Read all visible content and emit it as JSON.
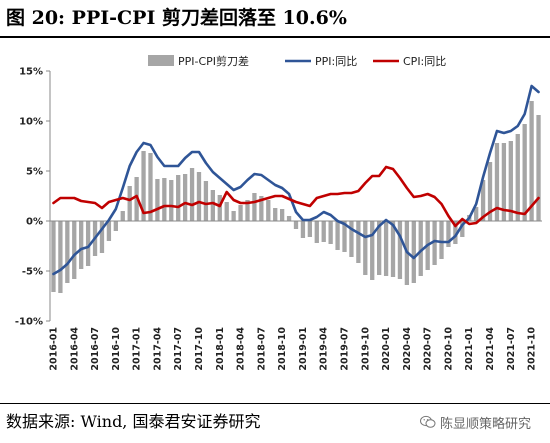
{
  "header": {
    "title": "图 20:  PPI-CPI 剪刀差回落至 10.6%"
  },
  "footer": {
    "source": "数据来源:  Wind, 国泰君安证券研究",
    "watermark": "陈显顺策略研究"
  },
  "colors": {
    "bars": "#a6a6a6",
    "ppi": "#2f5597",
    "cpi": "#c00000",
    "axis": "#888888"
  },
  "chart_data": {
    "type": "bar",
    "title": "",
    "xlabel": "",
    "ylabel": "",
    "ylim": [
      -10,
      15
    ],
    "yticks": [
      "15%",
      "10%",
      "5%",
      "0%",
      "-5%",
      "-10%"
    ],
    "ytick_values": [
      15,
      10,
      5,
      0,
      -5,
      -10
    ],
    "grid": false,
    "legend": {
      "position": "top",
      "entries": [
        "PPI-CPI剪刀差",
        "PPI:同比",
        "CPI:同比"
      ]
    },
    "x_tick_labels": [
      "2016-01",
      "2016-04",
      "2016-07",
      "2016-10",
      "2017-01",
      "2017-04",
      "2017-07",
      "2017-10",
      "2018-01",
      "2018-04",
      "2018-07",
      "2018-10",
      "2019-01",
      "2019-04",
      "2019-07",
      "2019-10",
      "2020-01",
      "2020-04",
      "2020-07",
      "2020-10",
      "2021-01",
      "2021-04",
      "2021-07",
      "2021-10"
    ],
    "categories": [
      "2016-01",
      "2016-02",
      "2016-03",
      "2016-04",
      "2016-05",
      "2016-06",
      "2016-07",
      "2016-08",
      "2016-09",
      "2016-10",
      "2016-11",
      "2016-12",
      "2017-01",
      "2017-02",
      "2017-03",
      "2017-04",
      "2017-05",
      "2017-06",
      "2017-07",
      "2017-08",
      "2017-09",
      "2017-10",
      "2017-11",
      "2017-12",
      "2018-01",
      "2018-02",
      "2018-03",
      "2018-04",
      "2018-05",
      "2018-06",
      "2018-07",
      "2018-08",
      "2018-09",
      "2018-10",
      "2018-11",
      "2018-12",
      "2019-01",
      "2019-02",
      "2019-03",
      "2019-04",
      "2019-05",
      "2019-06",
      "2019-07",
      "2019-08",
      "2019-09",
      "2019-10",
      "2019-11",
      "2019-12",
      "2020-01",
      "2020-02",
      "2020-03",
      "2020-04",
      "2020-05",
      "2020-06",
      "2020-07",
      "2020-08",
      "2020-09",
      "2020-10",
      "2020-11",
      "2020-12",
      "2021-01",
      "2021-02",
      "2021-03",
      "2021-04",
      "2021-05",
      "2021-06",
      "2021-07",
      "2021-08",
      "2021-09",
      "2021-10",
      "2021-11"
    ],
    "series": [
      {
        "name": "PPI-CPI剪刀差",
        "type": "bar",
        "values": [
          -7.1,
          -7.2,
          -6.2,
          -5.8,
          -4.8,
          -4.5,
          -3.5,
          -3.2,
          -2.0,
          -1.0,
          1.0,
          3.5,
          4.4,
          7.0,
          6.8,
          4.2,
          4.3,
          4.1,
          4.6,
          4.7,
          5.3,
          4.9,
          4.0,
          3.1,
          2.6,
          1.9,
          1.0,
          1.6,
          2.1,
          2.8,
          2.5,
          2.1,
          1.3,
          1.2,
          0.5,
          -0.8,
          -1.7,
          -1.6,
          -2.2,
          -2.1,
          -2.3,
          -2.9,
          -3.1,
          -3.6,
          -4.2,
          -5.4,
          -5.9,
          -5.4,
          -5.5,
          -5.6,
          -5.8,
          -6.4,
          -6.2,
          -5.5,
          -4.9,
          -4.4,
          -3.8,
          -2.6,
          -2.3,
          -1.6,
          0.6,
          1.4,
          4.1,
          5.9,
          7.8,
          7.8,
          8.0,
          8.7,
          9.7,
          12.0,
          10.6
        ]
      },
      {
        "name": "PPI:同比",
        "type": "line",
        "values": [
          -5.3,
          -4.9,
          -4.3,
          -3.4,
          -2.8,
          -2.6,
          -1.7,
          -0.8,
          0.1,
          1.2,
          3.3,
          5.5,
          6.9,
          7.8,
          7.6,
          6.4,
          5.5,
          5.5,
          5.5,
          6.3,
          6.9,
          6.9,
          5.8,
          4.9,
          4.3,
          3.7,
          3.1,
          3.4,
          4.1,
          4.7,
          4.6,
          4.1,
          3.6,
          3.3,
          2.7,
          0.9,
          0.1,
          0.1,
          0.4,
          0.9,
          0.6,
          0.0,
          -0.3,
          -0.8,
          -1.2,
          -1.6,
          -1.4,
          -0.5,
          0.1,
          -0.4,
          -1.5,
          -3.1,
          -3.7,
          -3.0,
          -2.4,
          -2.0,
          -2.1,
          -2.1,
          -1.5,
          -0.4,
          0.3,
          1.7,
          4.4,
          6.8,
          9.0,
          8.8,
          9.0,
          9.5,
          10.7,
          13.5,
          12.9
        ]
      },
      {
        "name": "CPI:同比",
        "type": "line",
        "values": [
          1.8,
          2.3,
          2.3,
          2.3,
          2.0,
          1.9,
          1.8,
          1.3,
          1.9,
          2.1,
          2.3,
          2.1,
          2.5,
          0.8,
          0.9,
          1.2,
          1.5,
          1.5,
          1.4,
          1.8,
          1.6,
          1.9,
          1.7,
          1.8,
          1.5,
          2.9,
          2.1,
          1.8,
          1.8,
          1.9,
          2.1,
          2.3,
          2.5,
          2.5,
          2.2,
          1.9,
          1.7,
          1.5,
          2.3,
          2.5,
          2.7,
          2.7,
          2.8,
          2.8,
          3.0,
          3.8,
          4.5,
          4.5,
          5.4,
          5.2,
          4.3,
          3.3,
          2.4,
          2.5,
          2.7,
          2.4,
          1.7,
          0.5,
          -0.5,
          0.2,
          -0.3,
          -0.2,
          0.4,
          0.9,
          1.3,
          1.1,
          1.0,
          0.8,
          0.7,
          1.5,
          2.3
        ]
      }
    ]
  }
}
